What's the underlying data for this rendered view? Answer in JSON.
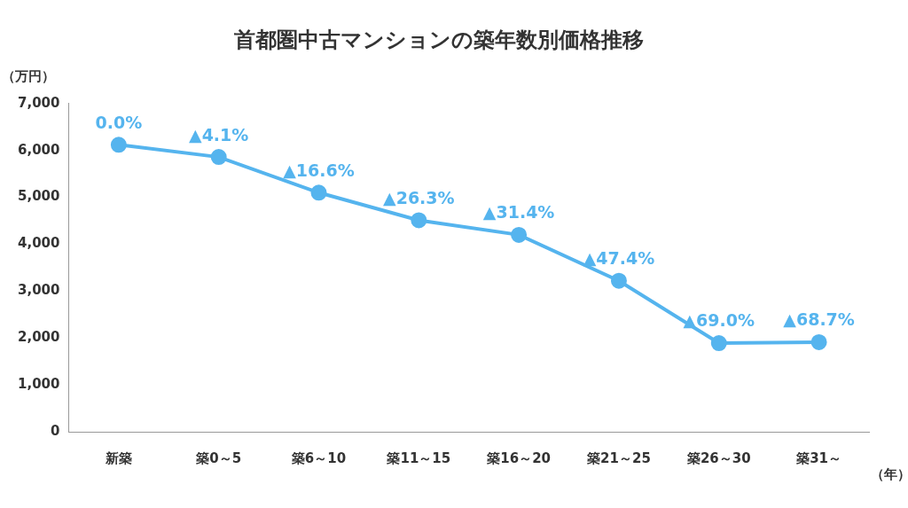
{
  "chart_data": {
    "type": "line",
    "title": "首都圏中古マンションの築年数別価格推移",
    "y_label": "（万円）",
    "x_label": "（年）",
    "categories": [
      "新築",
      "築0～5",
      "築6～10",
      "築11～15",
      "築16～20",
      "築21～25",
      "築26～30",
      "築31～"
    ],
    "values": [
      6120,
      5860,
      5100,
      4510,
      4200,
      3220,
      1890,
      1910
    ],
    "annotations": [
      "0.0%",
      "▲4.1%",
      "▲16.6%",
      "▲26.3%",
      "▲31.4%",
      "▲47.4%",
      "▲69.0%",
      "▲68.7%"
    ],
    "color": "#55b4ee",
    "marker": "circle",
    "line_style": "solid",
    "ylim": [
      0,
      7000
    ],
    "yticks": [
      0,
      {
        "value": 1000,
        "label": "1,000"
      },
      {
        "value": 2000,
        "label": "2,000"
      },
      {
        "value": 3000,
        "label": "3,000"
      },
      {
        "value": 4000,
        "label": "4,000"
      },
      {
        "value": 5000,
        "label": "5,000"
      },
      {
        "value": 6000,
        "label": "6,000"
      },
      {
        "value": 7000,
        "label": "7,000"
      }
    ],
    "grid": false
  }
}
